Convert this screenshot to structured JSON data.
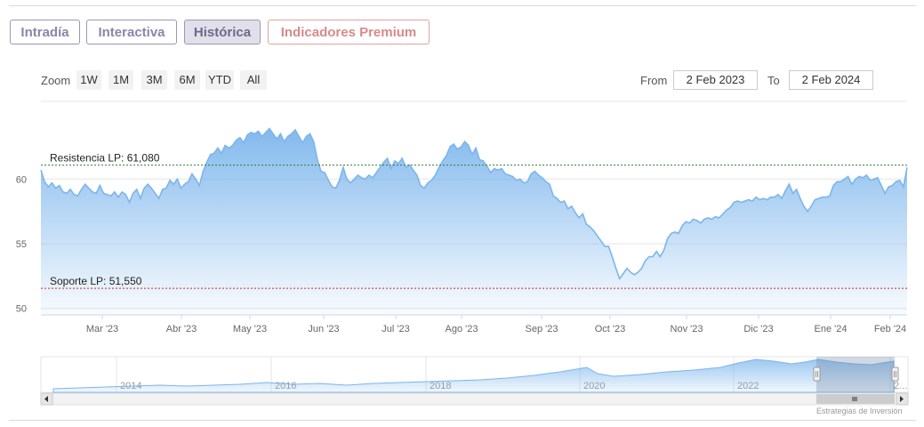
{
  "tabs": [
    {
      "label": "Intradía",
      "active": false
    },
    {
      "label": "Interactiva",
      "active": false
    },
    {
      "label": "Histórica",
      "active": true
    },
    {
      "label": "Indicadores Premium",
      "active": false
    }
  ],
  "zoom": {
    "label": "Zoom",
    "buttons": [
      "1W",
      "1M",
      "3M",
      "6M",
      "YTD",
      "All"
    ]
  },
  "range": {
    "from_label": "From",
    "from_value": "2 Feb 2023",
    "to_label": "To",
    "to_value": "2 Feb 2024"
  },
  "credit": "Estrategias de Inversión",
  "colors": {
    "line": "#7cb5ec",
    "area_top": "#7cb5ec",
    "resistance": "#2e7d32",
    "support": "#c62828"
  },
  "chart_data": {
    "type": "area",
    "title": "",
    "xlabel": "",
    "ylabel": "",
    "ylim": [
      49.5,
      66
    ],
    "y_ticks": [
      50,
      55,
      60
    ],
    "x_tick_labels": [
      "Mar '23",
      "Abr '23",
      "May '23",
      "Jun '23",
      "Jul '23",
      "Ago '23",
      "Sep '23",
      "Oct '23",
      "Nov '23",
      "Dic '23",
      "Ene '24",
      "Feb '24"
    ],
    "grid": true,
    "annotations": [
      {
        "label": "Resistencia LP: 61,080",
        "value": 61.08
      },
      {
        "label": "Soporte LP: 51,550",
        "value": 51.55
      }
    ],
    "series": [
      {
        "values": [
          60.7,
          59.8,
          59.4,
          59.7,
          59.3,
          59.5,
          59.0,
          58.9,
          59.2,
          58.8,
          58.7,
          59.2,
          59.6,
          59.3,
          59.0,
          58.9,
          59.5,
          58.9,
          58.8,
          58.7,
          59.0,
          58.6,
          59.0,
          58.8,
          58.2,
          58.9,
          59.2,
          58.5,
          59.3,
          59.6,
          59.3,
          58.9,
          58.5,
          59.2,
          59.3,
          59.9,
          59.6,
          60.0,
          59.3,
          59.6,
          59.8,
          60.4,
          60.0,
          59.5,
          60.6,
          61.3,
          61.9,
          62.0,
          62.4,
          62.0,
          62.6,
          62.4,
          62.6,
          63.0,
          63.2,
          62.8,
          63.4,
          63.6,
          63.5,
          63.7,
          63.3,
          63.6,
          63.9,
          63.5,
          63.1,
          63.5,
          62.9,
          63.3,
          63.5,
          63.8,
          63.3,
          62.8,
          63.3,
          63.5,
          62.9,
          61.5,
          60.6,
          60.5,
          59.9,
          59.4,
          59.3,
          59.9,
          60.9,
          60.0,
          59.7,
          60.0,
          60.3,
          60.1,
          60.0,
          60.3,
          60.1,
          60.5,
          60.9,
          61.3,
          61.6,
          60.8,
          61.4,
          61.2,
          61.6,
          60.9,
          61.1,
          60.7,
          60.3,
          59.5,
          59.3,
          59.7,
          59.9,
          60.3,
          60.9,
          61.4,
          61.8,
          62.5,
          62.7,
          62.3,
          62.5,
          62.9,
          62.6,
          61.9,
          62.4,
          61.5,
          61.4,
          61.0,
          60.5,
          60.8,
          60.7,
          60.8,
          60.4,
          60.3,
          60.2,
          59.9,
          60.0,
          59.7,
          59.8,
          60.4,
          60.6,
          60.3,
          60.1,
          59.8,
          59.6,
          58.7,
          58.5,
          58.2,
          58.3,
          57.7,
          57.9,
          57.4,
          57.0,
          57.3,
          56.5,
          56.3,
          56.0,
          55.6,
          55.2,
          54.8,
          54.8,
          54.0,
          53.1,
          52.3,
          52.7,
          53.1,
          52.8,
          52.6,
          52.8,
          53.1,
          53.7,
          54.0,
          54.0,
          54.4,
          54.0,
          54.5,
          55.4,
          55.8,
          55.9,
          55.8,
          56.4,
          56.7,
          56.6,
          56.9,
          56.8,
          56.6,
          56.9,
          57.0,
          56.9,
          57.1,
          57.0,
          57.3,
          57.6,
          57.8,
          58.2,
          58.3,
          58.2,
          58.3,
          58.4,
          58.3,
          58.6,
          58.4,
          58.5,
          58.4,
          58.6,
          58.6,
          58.8,
          58.5,
          59.1,
          59.6,
          58.9,
          59.2,
          58.5,
          57.9,
          57.5,
          57.9,
          58.4,
          58.5,
          58.6,
          58.6,
          58.7,
          59.5,
          59.8,
          59.8,
          60.0,
          60.2,
          59.6,
          60.0,
          60.2,
          60.1,
          60.3,
          59.9,
          60.0,
          60.1,
          59.5,
          58.9,
          59.4,
          59.5,
          59.8,
          59.9,
          59.4,
          60.9
        ]
      }
    ]
  },
  "navigator": {
    "year_labels": [
      "2014",
      "2016",
      "2018",
      "2020",
      "2022",
      "2..."
    ]
  }
}
